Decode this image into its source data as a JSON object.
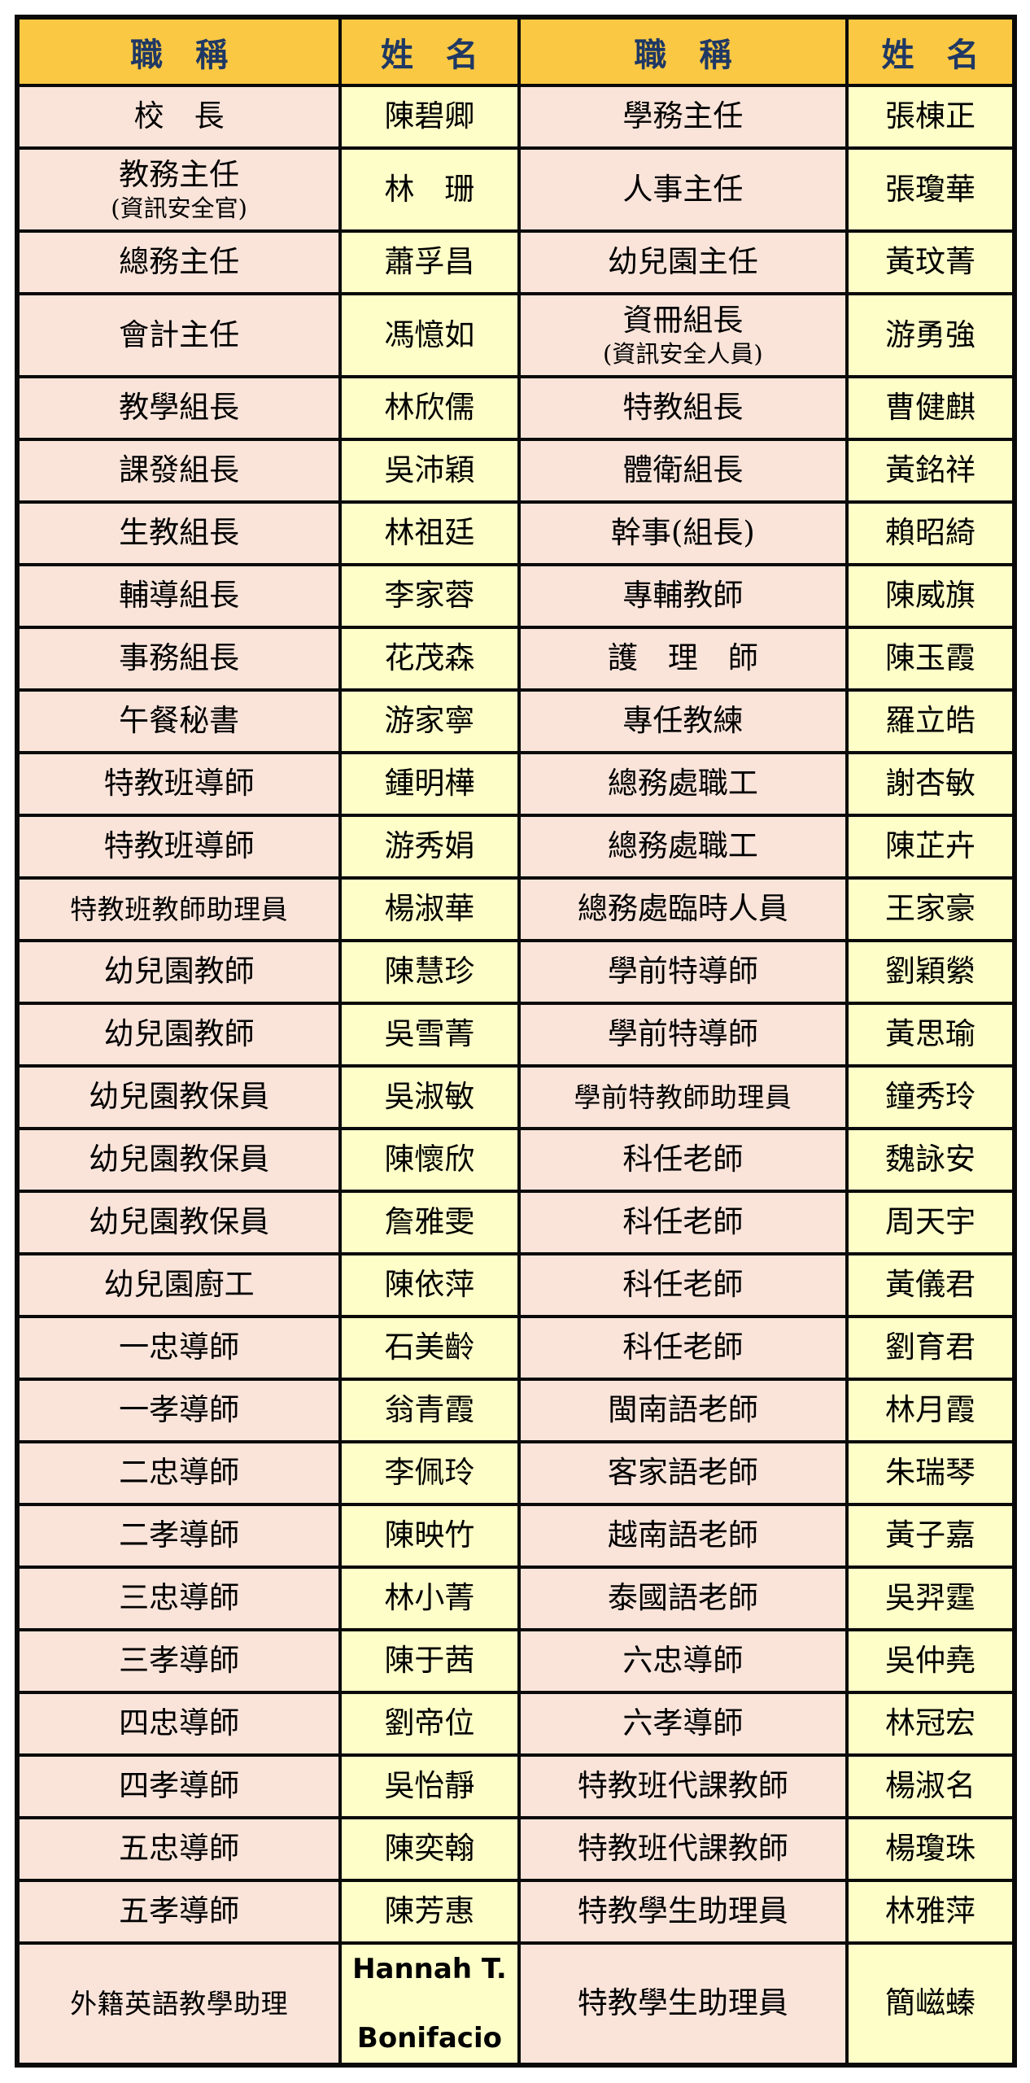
{
  "colors": {
    "header_bg": "#FBC843",
    "header_text": "#1F3864",
    "title_cell_bg": "#FAE4DA",
    "name_cell_bg": "#FEFEC8",
    "border": "#0A0A0A",
    "body_text": "#000000"
  },
  "table": {
    "headers": [
      "職　稱",
      "姓　名",
      "職　稱",
      "姓　名"
    ],
    "rows": [
      {
        "h": "normal",
        "cells": [
          [
            "校　長"
          ],
          [
            "陳碧卿"
          ],
          [
            "學務主任"
          ],
          [
            "張棟正"
          ]
        ]
      },
      {
        "h": "tall",
        "cells": [
          [
            "教務主任",
            "(資訊安全官)"
          ],
          [
            "林　珊"
          ],
          [
            "人事主任"
          ],
          [
            "張瓊華"
          ]
        ]
      },
      {
        "h": "normal",
        "cells": [
          [
            "總務主任"
          ],
          [
            "蕭孚昌"
          ],
          [
            "幼兒園主任"
          ],
          [
            "黃玟菁"
          ]
        ]
      },
      {
        "h": "tall",
        "cells": [
          [
            "會計主任"
          ],
          [
            "馮憶如"
          ],
          [
            "資冊組長",
            "(資訊安全人員)"
          ],
          [
            "游勇強"
          ]
        ]
      },
      {
        "h": "normal",
        "cells": [
          [
            "教學組長"
          ],
          [
            "林欣儒"
          ],
          [
            "特教組長"
          ],
          [
            "曹健麒"
          ]
        ]
      },
      {
        "h": "normal",
        "cells": [
          [
            "課發組長"
          ],
          [
            "吳沛穎"
          ],
          [
            "體衛組長"
          ],
          [
            "黃銘祥"
          ]
        ]
      },
      {
        "h": "normal",
        "cells": [
          [
            "生教組長"
          ],
          [
            "林祖廷"
          ],
          [
            "幹事(組長)"
          ],
          [
            "賴昭綺"
          ]
        ]
      },
      {
        "h": "normal",
        "cells": [
          [
            "輔導組長"
          ],
          [
            "李家蓉"
          ],
          [
            "專輔教師"
          ],
          [
            "陳威旗"
          ]
        ]
      },
      {
        "h": "normal",
        "cells": [
          [
            "事務組長"
          ],
          [
            "花茂森"
          ],
          [
            "護　理　師"
          ],
          [
            "陳玉霞"
          ]
        ]
      },
      {
        "h": "normal",
        "cells": [
          [
            "午餐秘書"
          ],
          [
            "游家寧"
          ],
          [
            "專任教練"
          ],
          [
            "羅立皓"
          ]
        ]
      },
      {
        "h": "normal",
        "cells": [
          [
            "特教班導師"
          ],
          [
            "鍾明樺"
          ],
          [
            "總務處職工"
          ],
          [
            "謝杏敏"
          ]
        ]
      },
      {
        "h": "normal",
        "cells": [
          [
            "特教班導師"
          ],
          [
            "游秀娟"
          ],
          [
            "總務處職工"
          ],
          [
            "陳芷卉"
          ]
        ]
      },
      {
        "h": "normal",
        "cells": [
          [
            "特教班教師助理員"
          ],
          [
            "楊淑華"
          ],
          [
            "總務處臨時人員"
          ],
          [
            "王家豪"
          ]
        ]
      },
      {
        "h": "normal",
        "cells": [
          [
            "幼兒園教師"
          ],
          [
            "陳慧珍"
          ],
          [
            "學前特導師"
          ],
          [
            "劉穎縈"
          ]
        ]
      },
      {
        "h": "normal",
        "cells": [
          [
            "幼兒園教師"
          ],
          [
            "吳雪菁"
          ],
          [
            "學前特導師"
          ],
          [
            "黃思瑜"
          ]
        ]
      },
      {
        "h": "normal",
        "cells": [
          [
            "幼兒園教保員"
          ],
          [
            "吳淑敏"
          ],
          [
            "學前特教師助理員"
          ],
          [
            "鐘秀玲"
          ]
        ]
      },
      {
        "h": "normal",
        "cells": [
          [
            "幼兒園教保員"
          ],
          [
            "陳懷欣"
          ],
          [
            "科任老師"
          ],
          [
            "魏詠安"
          ]
        ]
      },
      {
        "h": "normal",
        "cells": [
          [
            "幼兒園教保員"
          ],
          [
            "詹雅雯"
          ],
          [
            "科任老師"
          ],
          [
            "周天宇"
          ]
        ]
      },
      {
        "h": "normal",
        "cells": [
          [
            "幼兒園廚工"
          ],
          [
            "陳依萍"
          ],
          [
            "科任老師"
          ],
          [
            "黃儀君"
          ]
        ]
      },
      {
        "h": "normal",
        "cells": [
          [
            "一忠導師"
          ],
          [
            "石美齡"
          ],
          [
            "科任老師"
          ],
          [
            "劉育君"
          ]
        ]
      },
      {
        "h": "normal",
        "cells": [
          [
            "一孝導師"
          ],
          [
            "翁青霞"
          ],
          [
            "閩南語老師"
          ],
          [
            "林月霞"
          ]
        ]
      },
      {
        "h": "normal",
        "cells": [
          [
            "二忠導師"
          ],
          [
            "李佩玲"
          ],
          [
            "客家語老師"
          ],
          [
            "朱瑞琴"
          ]
        ]
      },
      {
        "h": "normal",
        "cells": [
          [
            "二孝導師"
          ],
          [
            "陳映竹"
          ],
          [
            "越南語老師"
          ],
          [
            "黃子嘉"
          ]
        ]
      },
      {
        "h": "normal",
        "cells": [
          [
            "三忠導師"
          ],
          [
            "林小菁"
          ],
          [
            "泰國語老師"
          ],
          [
            "吳羿霆"
          ]
        ]
      },
      {
        "h": "normal",
        "cells": [
          [
            "三孝導師"
          ],
          [
            "陳于茜"
          ],
          [
            "六忠導師"
          ],
          [
            "吳仲堯"
          ]
        ]
      },
      {
        "h": "normal",
        "cells": [
          [
            "四忠導師"
          ],
          [
            "劉帝位"
          ],
          [
            "六孝導師"
          ],
          [
            "林冠宏"
          ]
        ]
      },
      {
        "h": "normal",
        "cells": [
          [
            "四孝導師"
          ],
          [
            "吳怡靜"
          ],
          [
            "特教班代課教師"
          ],
          [
            "楊淑名"
          ]
        ]
      },
      {
        "h": "normal",
        "cells": [
          [
            "五忠導師"
          ],
          [
            "陳奕翰"
          ],
          [
            "特教班代課教師"
          ],
          [
            "楊瓊珠"
          ]
        ]
      },
      {
        "h": "normal",
        "cells": [
          [
            "五孝導師"
          ],
          [
            "陳芳惠"
          ],
          [
            "特教學生助理員"
          ],
          [
            "林雅萍"
          ]
        ]
      },
      {
        "h": "xl",
        "cells": [
          [
            "外籍英語教學助理"
          ],
          [
            "Hannah T.",
            "Bonifacio"
          ],
          [
            "特教學生助理員"
          ],
          [
            "簡嵫螓"
          ]
        ]
      }
    ]
  }
}
